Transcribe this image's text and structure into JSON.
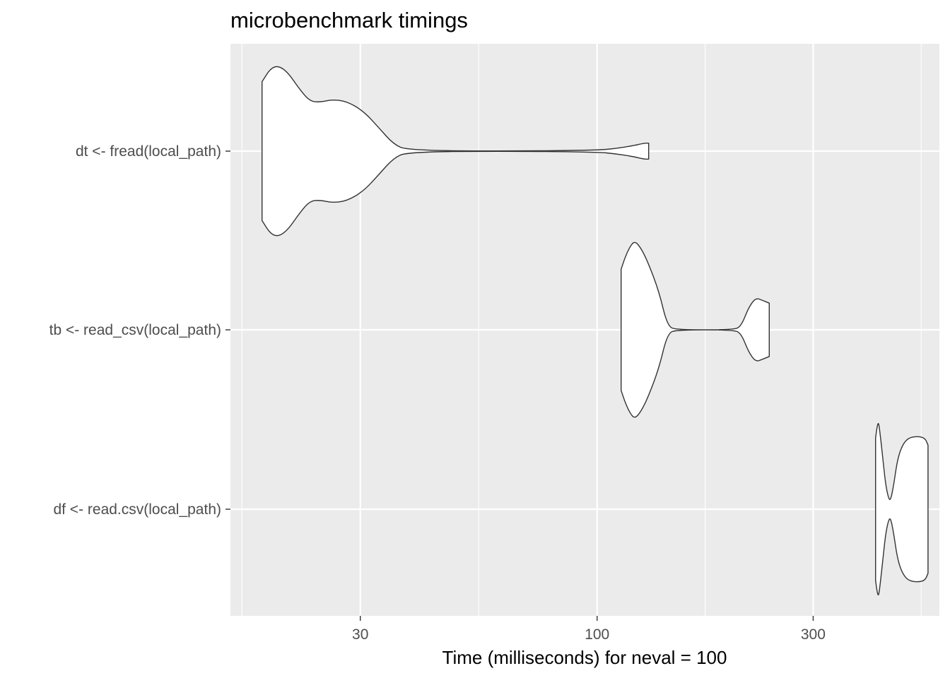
{
  "chart_data": {
    "type": "violin",
    "title": "microbenchmark timings",
    "xlabel": "Time (milliseconds) for neval = 100",
    "ylabel": "",
    "x_scale": "log10",
    "xlim": [
      15.5,
      570
    ],
    "x_ticks": [
      30,
      100,
      300
    ],
    "x_tick_labels": [
      "30",
      "100",
      "300"
    ],
    "grid": true,
    "background": "#ebebeb",
    "grid_color": "#ffffff",
    "fill_color": "#ffffff",
    "outline_color": "#333333",
    "categories": [
      "dt <- fread(local_path)",
      "tb <- read_csv(local_path)",
      "df <- read.csv(local_path)"
    ],
    "series": [
      {
        "category": "dt <- fread(local_path)",
        "min": 18.2,
        "max": 130,
        "profile": [
          [
            18.2,
            0.78
          ],
          [
            19.0,
            0.93
          ],
          [
            19.8,
            0.96
          ],
          [
            20.8,
            0.88
          ],
          [
            22.0,
            0.7
          ],
          [
            23.2,
            0.56
          ],
          [
            24.5,
            0.55
          ],
          [
            26.0,
            0.58
          ],
          [
            28.0,
            0.56
          ],
          [
            30.5,
            0.45
          ],
          [
            33.0,
            0.26
          ],
          [
            35.5,
            0.08
          ],
          [
            38.0,
            0.01
          ],
          [
            60.0,
            0.0
          ],
          [
            100.0,
            0.01
          ],
          [
            110.0,
            0.03
          ],
          [
            120.0,
            0.06
          ],
          [
            127.0,
            0.09
          ],
          [
            130.0,
            0.09
          ]
        ]
      },
      {
        "category": "tb <- read_csv(local_path)",
        "min": 113,
        "max": 240,
        "profile": [
          [
            113.0,
            0.68
          ],
          [
            115.0,
            0.8
          ],
          [
            118.0,
            0.93
          ],
          [
            121.0,
            1.0
          ],
          [
            125.0,
            0.92
          ],
          [
            130.0,
            0.74
          ],
          [
            137.0,
            0.43
          ],
          [
            143.0,
            0.04
          ],
          [
            150.0,
            0.0
          ],
          [
            200.0,
            0.0
          ],
          [
            208.0,
            0.04
          ],
          [
            216.0,
            0.25
          ],
          [
            224.0,
            0.36
          ],
          [
            232.0,
            0.33
          ],
          [
            240.0,
            0.3
          ]
        ]
      },
      {
        "category": "df <- read.csv(local_path)",
        "min": 412,
        "max": 538,
        "profile": [
          [
            412.0,
            0.8
          ],
          [
            415.0,
            0.92
          ],
          [
            418.0,
            0.98
          ],
          [
            420.5,
            0.9
          ],
          [
            427.0,
            0.6
          ],
          [
            433.0,
            0.3
          ],
          [
            440.0,
            0.12
          ],
          [
            445.0,
            0.1
          ],
          [
            452.0,
            0.28
          ],
          [
            460.0,
            0.54
          ],
          [
            470.0,
            0.7
          ],
          [
            485.0,
            0.8
          ],
          [
            510.0,
            0.82
          ],
          [
            530.0,
            0.8
          ],
          [
            538.0,
            0.72
          ]
        ]
      }
    ]
  }
}
